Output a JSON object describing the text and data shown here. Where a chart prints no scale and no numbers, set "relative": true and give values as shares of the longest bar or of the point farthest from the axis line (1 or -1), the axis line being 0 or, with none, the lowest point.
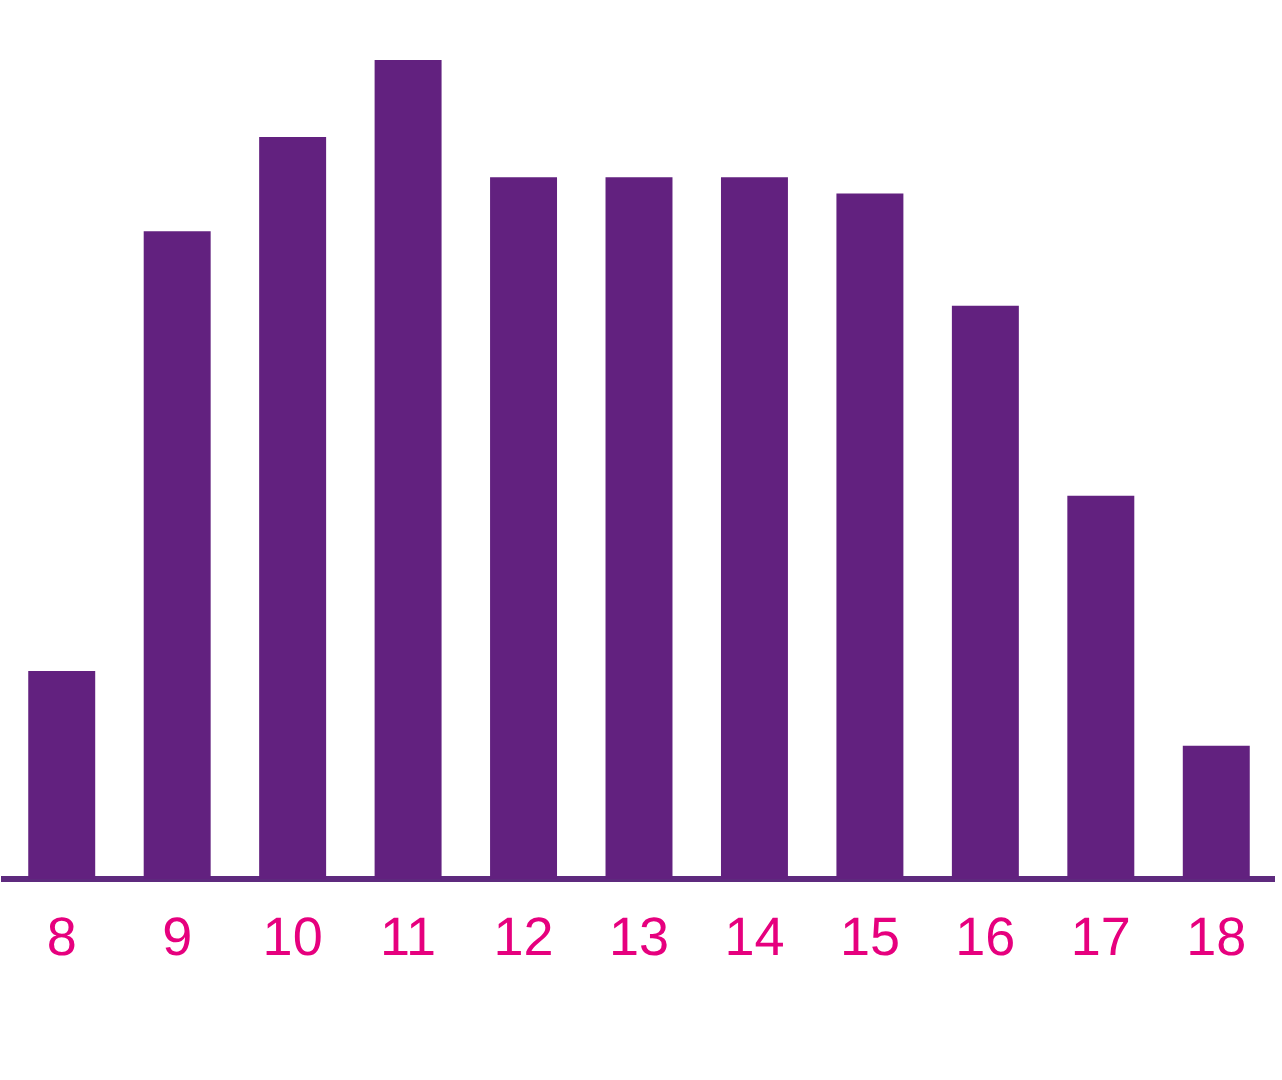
{
  "chart_data": {
    "type": "bar",
    "relative": true,
    "categories": [
      "8",
      "9",
      "10",
      "11",
      "12",
      "13",
      "14",
      "15",
      "16",
      "17",
      "18"
    ],
    "values": [
      0.254,
      0.791,
      0.906,
      1,
      0.857,
      0.857,
      0.857,
      0.837,
      0.7,
      0.468,
      0.163
    ],
    "color": "#62217f",
    "grid": false,
    "legend": false
  }
}
